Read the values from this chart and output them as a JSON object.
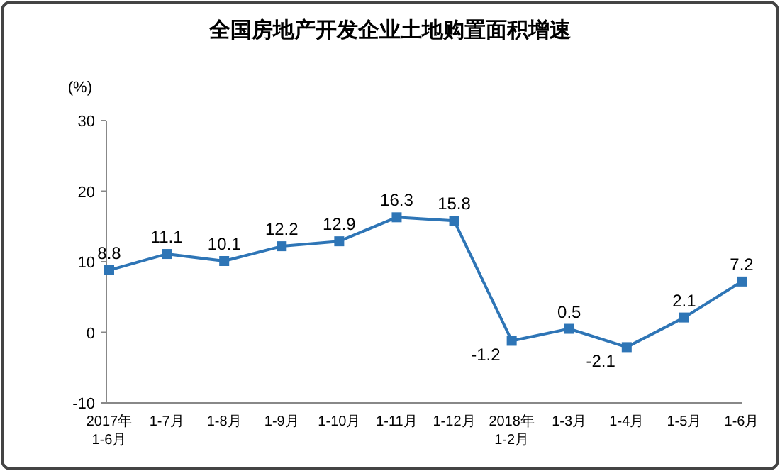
{
  "chart_data": {
    "type": "line",
    "title": "全国房地产开发企业土地购置面积增速",
    "ylabel": "(%)",
    "categories": [
      "2017年\n1-6月",
      "1-7月",
      "1-8月",
      "1-9月",
      "1-10月",
      "1-11月",
      "1-12月",
      "2018年\n1-2月",
      "1-3月",
      "1-4月",
      "1-5月",
      "1-6月"
    ],
    "series": [
      {
        "color": "#2e75b6",
        "values": [
          8.8,
          11.1,
          10.1,
          12.2,
          12.9,
          16.3,
          15.8,
          -1.2,
          0.5,
          -2.1,
          2.1,
          7.2
        ]
      }
    ],
    "ylim": [
      -10,
      30
    ],
    "yticks": [
      -10,
      0,
      10,
      20,
      30
    ],
    "grid": false,
    "marker": "square",
    "line_style": "solid",
    "data_labels": true
  }
}
